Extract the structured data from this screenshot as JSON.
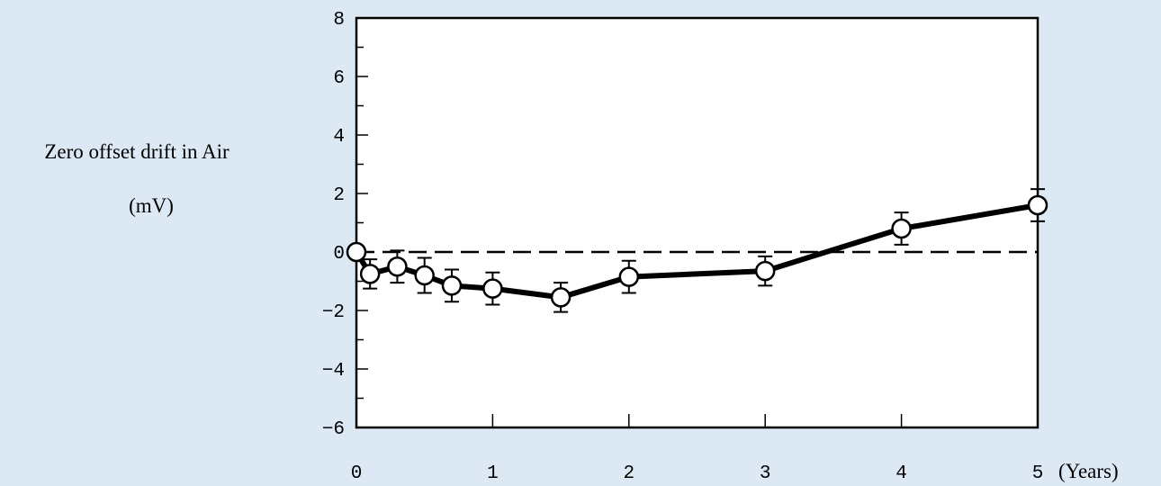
{
  "colors": {
    "background": "#dde8f5",
    "plot_area": "#ffffff",
    "line": "#000000",
    "marker_fill": "#ffffff",
    "reference_line": "#000000"
  },
  "chart_data": {
    "type": "line",
    "title": "",
    "ylabel_line1": "Zero offset drift in Air",
    "ylabel_line2": "(mV)",
    "xlabel": "(Years)",
    "xlim": [
      0,
      5
    ],
    "ylim": [
      -6,
      8
    ],
    "xticks": [
      "0",
      "1",
      "2",
      "3",
      "4",
      "5"
    ],
    "yticks": [
      "8",
      "6",
      "4",
      "2",
      "0",
      "−2",
      "−4",
      "−6"
    ],
    "reference_line_y": 0,
    "reference_line_style": "dashed",
    "grid": false,
    "marker": "open-circle",
    "series": [
      {
        "x": [
          0,
          0.1,
          0.3,
          0.5,
          0.7,
          1.0,
          1.5,
          2.0,
          3.0,
          4.0,
          5.0
        ],
        "y": [
          0,
          -0.75,
          -0.5,
          -0.8,
          -1.15,
          -1.25,
          -1.55,
          -0.85,
          -0.65,
          0.8,
          1.6
        ],
        "error": [
          0,
          0.5,
          0.55,
          0.6,
          0.55,
          0.55,
          0.5,
          0.55,
          0.5,
          0.55,
          0.55
        ]
      }
    ]
  }
}
